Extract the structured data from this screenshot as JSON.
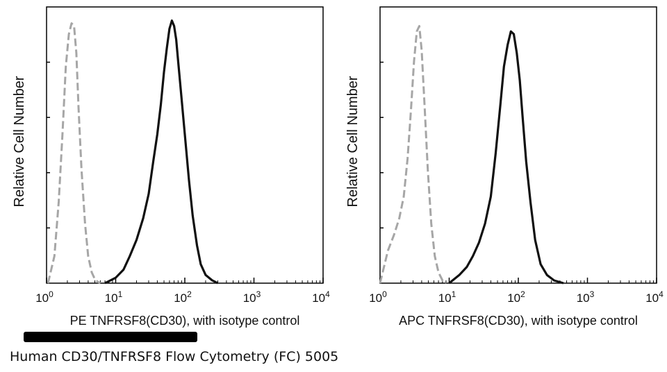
{
  "caption": "Human CD30/TNFRSF8 Flow Cytometry (FC) 5005",
  "colors": {
    "sample": "#111111",
    "isotype": "#a6a6a6",
    "axis": "#000000"
  },
  "chart_data": [
    {
      "type": "line",
      "xlabel": "PE TNFRSF8(CD30), with isotype control",
      "ylabel": "Relative Cell Number",
      "x_scale": "log",
      "xlim": [
        1,
        10000
      ],
      "ylim": [
        0,
        1
      ],
      "x_ticks": [
        {
          "base": "10",
          "exp": "0",
          "value": 1
        },
        {
          "base": "10",
          "exp": "1",
          "value": 10
        },
        {
          "base": "10",
          "exp": "2",
          "value": 100
        },
        {
          "base": "10",
          "exp": "3",
          "value": 1000
        },
        {
          "base": "10",
          "exp": "4",
          "value": 10000
        }
      ],
      "y_ticks_labeled": false,
      "series": [
        {
          "role": "isotype",
          "style": "dashed",
          "color": "#a6a6a6",
          "x": [
            1.05,
            1.3,
            1.5,
            1.7,
            1.9,
            2.1,
            2.3,
            2.5,
            2.7,
            2.9,
            3.2,
            3.6,
            4.0,
            4.5,
            5.0,
            5.5,
            6.0
          ],
          "y": [
            0.0,
            0.1,
            0.3,
            0.55,
            0.8,
            0.92,
            0.96,
            0.95,
            0.85,
            0.65,
            0.42,
            0.22,
            0.1,
            0.04,
            0.015,
            0.005,
            0.0
          ]
        },
        {
          "role": "sample",
          "style": "solid",
          "color": "#111111",
          "x": [
            7,
            10,
            13,
            16,
            20,
            25,
            30,
            35,
            40,
            45,
            50,
            55,
            60,
            65,
            70,
            75,
            80,
            90,
            100,
            115,
            130,
            150,
            170,
            200,
            250,
            300
          ],
          "y": [
            0.0,
            0.02,
            0.05,
            0.1,
            0.16,
            0.24,
            0.33,
            0.45,
            0.55,
            0.66,
            0.78,
            0.87,
            0.94,
            0.97,
            0.95,
            0.9,
            0.82,
            0.68,
            0.55,
            0.38,
            0.25,
            0.14,
            0.07,
            0.03,
            0.01,
            0.0
          ]
        }
      ]
    },
    {
      "type": "line",
      "xlabel": "APC TNFRSF8(CD30), with isotype control",
      "ylabel": "Relative Cell Number",
      "x_scale": "log",
      "xlim": [
        1,
        10000
      ],
      "ylim": [
        0,
        1
      ],
      "x_ticks": [
        {
          "base": "10",
          "exp": "0",
          "value": 1
        },
        {
          "base": "10",
          "exp": "1",
          "value": 10
        },
        {
          "base": "10",
          "exp": "2",
          "value": 100
        },
        {
          "base": "10",
          "exp": "3",
          "value": 1000
        },
        {
          "base": "10",
          "exp": "4",
          "value": 10000
        }
      ],
      "y_ticks_labeled": false,
      "series": [
        {
          "role": "isotype",
          "style": "dashed",
          "color": "#a6a6a6",
          "x": [
            1.0,
            1.3,
            1.6,
            1.9,
            2.2,
            2.5,
            2.8,
            3.1,
            3.4,
            3.7,
            4.0,
            4.4,
            4.9,
            5.5,
            6.2,
            7.0,
            8.0,
            9.0
          ],
          "y": [
            0.0,
            0.12,
            0.18,
            0.24,
            0.32,
            0.46,
            0.64,
            0.82,
            0.93,
            0.95,
            0.86,
            0.66,
            0.42,
            0.22,
            0.1,
            0.04,
            0.01,
            0.0
          ]
        },
        {
          "role": "sample",
          "style": "solid",
          "color": "#111111",
          "x": [
            10,
            14,
            18,
            22,
            27,
            33,
            40,
            47,
            55,
            62,
            70,
            78,
            86,
            95,
            105,
            115,
            130,
            150,
            175,
            210,
            260,
            330,
            450
          ],
          "y": [
            0.0,
            0.03,
            0.06,
            0.1,
            0.15,
            0.22,
            0.32,
            0.48,
            0.66,
            0.8,
            0.88,
            0.93,
            0.92,
            0.85,
            0.75,
            0.62,
            0.45,
            0.3,
            0.16,
            0.07,
            0.03,
            0.01,
            0.0
          ]
        }
      ]
    }
  ]
}
